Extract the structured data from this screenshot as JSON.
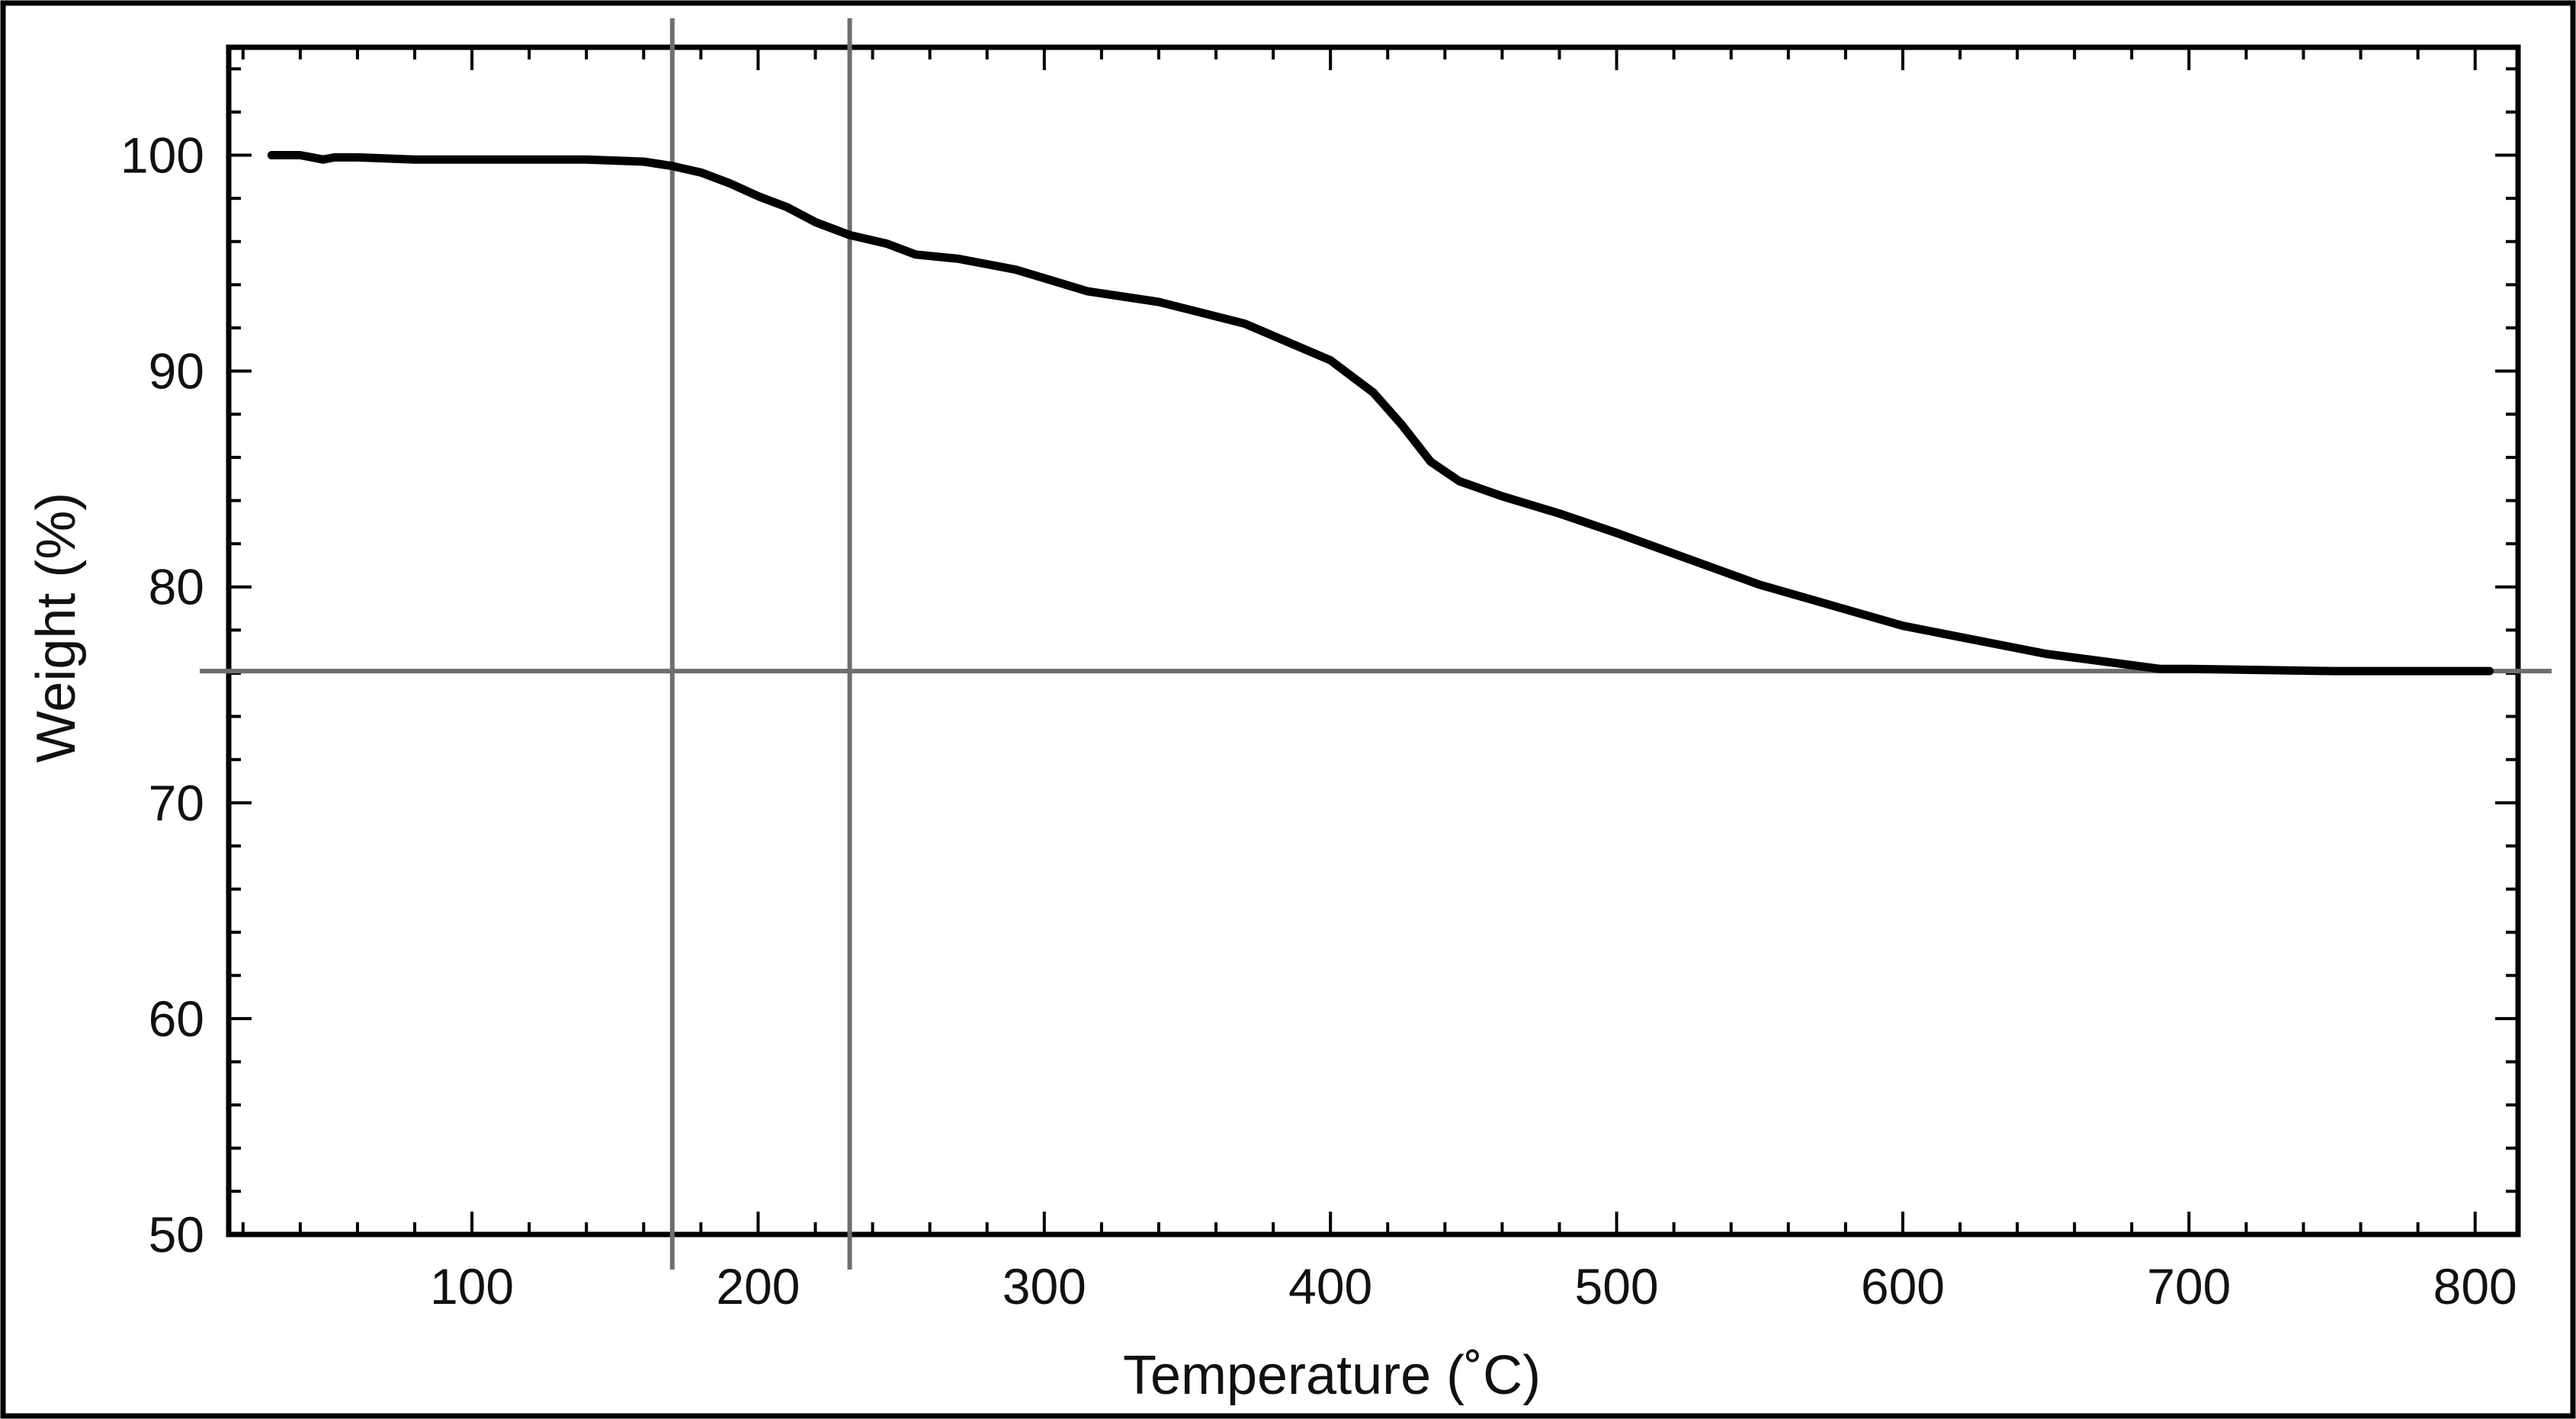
{
  "chart_data": {
    "type": "line",
    "xlabel": "Temperature (˚C)",
    "ylabel": "Weight (%)",
    "xlim": [
      15,
      815
    ],
    "ylim": [
      50,
      105
    ],
    "x_ticks": [
      100,
      200,
      300,
      400,
      500,
      600,
      700,
      800
    ],
    "y_ticks": [
      50,
      60,
      70,
      80,
      90,
      100
    ],
    "x_minor_step": 20,
    "y_minor_step": 2,
    "grid": false,
    "legend": "none",
    "colors": {
      "line": "#000000",
      "reference_lines": "#6e6e6e"
    },
    "reference_lines": {
      "vertical_x": [
        170,
        232
      ],
      "horizontal_y": [
        76.1
      ]
    },
    "series": [
      {
        "x": [
          30,
          40,
          48,
          52,
          60,
          80,
          100,
          120,
          140,
          160,
          170,
          180,
          190,
          200,
          210,
          220,
          232,
          245,
          255,
          270,
          290,
          300,
          315,
          340,
          370,
          400,
          415,
          425,
          435,
          445,
          460,
          480,
          500,
          550,
          600,
          650,
          690,
          700,
          750,
          805
        ],
        "y": [
          100,
          100,
          99.8,
          99.9,
          99.9,
          99.8,
          99.8,
          99.8,
          99.8,
          99.7,
          99.5,
          99.2,
          98.7,
          98.1,
          97.6,
          96.9,
          96.3,
          95.9,
          95.4,
          95.2,
          94.7,
          94.3,
          93.7,
          93.2,
          92.2,
          90.5,
          89,
          87.5,
          85.8,
          84.9,
          84.2,
          83.4,
          82.5,
          80.1,
          78.2,
          76.9,
          76.2,
          76.2,
          76.1,
          76.1
        ]
      }
    ]
  }
}
